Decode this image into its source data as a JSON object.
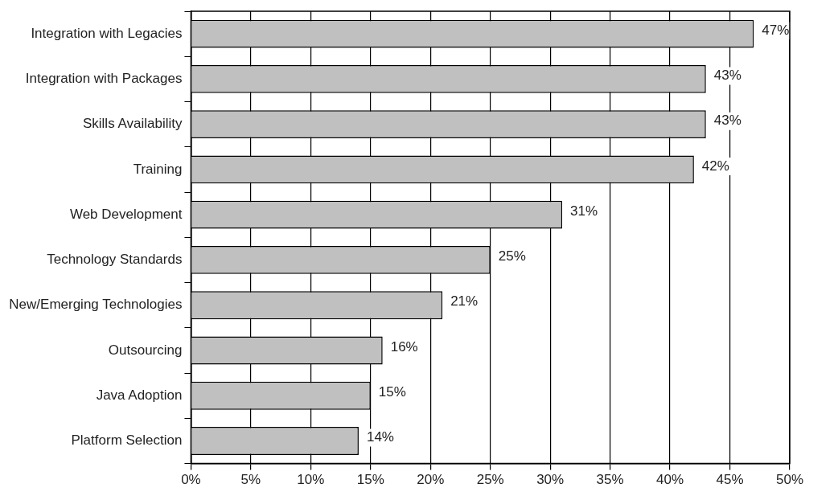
{
  "chart_data": {
    "type": "bar",
    "orientation": "horizontal",
    "categories": [
      "Integration with Legacies",
      "Integration with Packages",
      "Skills Availability",
      "Training",
      "Web Development",
      "Technology Standards",
      "New/Emerging Technologies",
      "Outsourcing",
      "Java Adoption",
      "Platform Selection"
    ],
    "values": [
      47,
      43,
      43,
      42,
      31,
      25,
      21,
      16,
      15,
      14
    ],
    "value_labels": [
      "47%",
      "43%",
      "43%",
      "42%",
      "31%",
      "25%",
      "21%",
      "16%",
      "15%",
      "14%"
    ],
    "color": "#c0c0c0",
    "xlim": [
      0,
      50
    ],
    "xticks": [
      {
        "value": 0,
        "label": "0%"
      },
      {
        "value": 5,
        "label": "5%"
      },
      {
        "value": 10,
        "label": "10%"
      },
      {
        "value": 15,
        "label": "15%"
      },
      {
        "value": 20,
        "label": "20%"
      },
      {
        "value": 25,
        "label": "25%"
      },
      {
        "value": 30,
        "label": "30%"
      },
      {
        "value": 35,
        "label": "35%"
      },
      {
        "value": 40,
        "label": "40%"
      },
      {
        "value": 45,
        "label": "45%"
      },
      {
        "value": 50,
        "label": "50%"
      }
    ],
    "grid": "x",
    "legend": false
  }
}
